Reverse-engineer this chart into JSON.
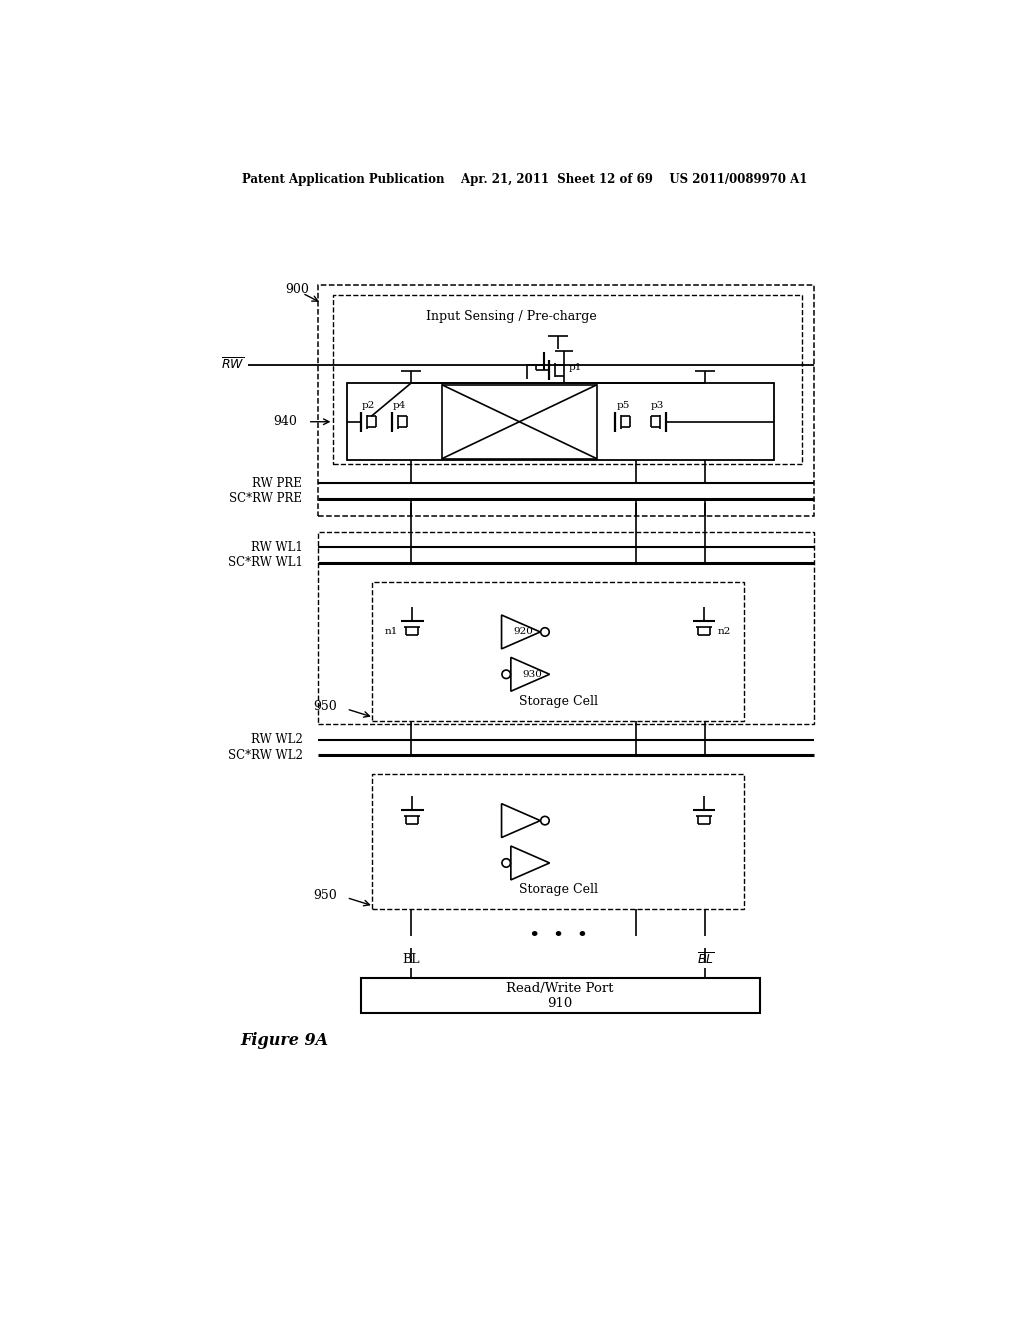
{
  "bg_color": "#ffffff",
  "header_text": "Patent Application Publication    Apr. 21, 2011  Sheet 12 of 69    US 2011/0089970 A1",
  "figure_label": "Figure 9A",
  "diagram": {
    "label_900": "900",
    "label_940": "940",
    "label_950": "950",
    "label_910": "Read/Write Port\n910",
    "label_920": "920",
    "label_930": "930",
    "label_p1": "p1",
    "label_p2": "p2",
    "label_p3": "p3",
    "label_p4": "p4",
    "label_p5": "p5",
    "label_n1": "n1",
    "label_n2": "n2",
    "rw_bar_label": "RW",
    "rw_pre_label": "RW PRE",
    "sc_rw_pre_label": "SC*RW PRE",
    "rw_wl1_label": "RW WL1",
    "sc_rw_wl1_label": "SC*RW WL1",
    "rw_wl2_label": "RW WL2",
    "sc_rw_wl2_label": "SC*RW WL2",
    "bl_label": "BL",
    "bl_bar_label": "BL",
    "input_sensing_label": "Input Sensing / Pre-charge",
    "storage_cell_label": "Storage Cell"
  }
}
